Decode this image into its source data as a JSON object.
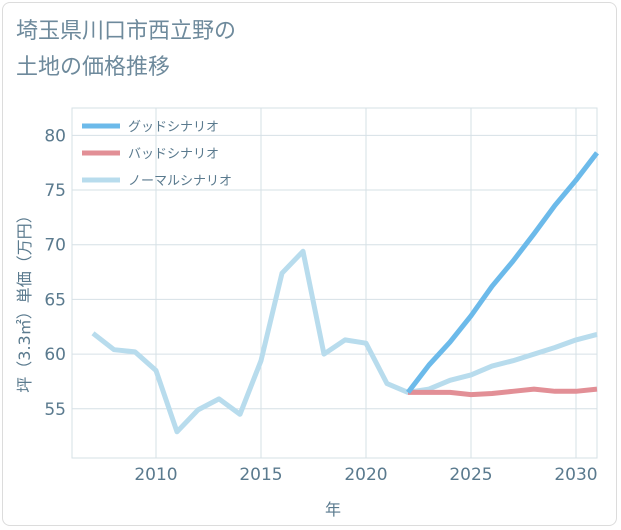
{
  "title": {
    "line1": "埼玉県川口市西立野の",
    "line2": "土地の価格推移"
  },
  "chart_data": {
    "type": "line",
    "xlabel": "年",
    "ylabel": "坪（3.3㎡）単価（万円）",
    "xlim": [
      2006,
      2031
    ],
    "ylim": [
      50.5,
      82.5
    ],
    "x_ticks": [
      2010,
      2015,
      2020,
      2025,
      2030
    ],
    "y_ticks": [
      55,
      60,
      65,
      70,
      75,
      80
    ],
    "grid": true,
    "legend_position": "top-left",
    "series": [
      {
        "name": "グッドシナリオ",
        "color": "#6cbaea",
        "x": [
          2022,
          2023,
          2024,
          2025,
          2026,
          2027,
          2028,
          2029,
          2030,
          2031
        ],
        "y": [
          56.5,
          59.0,
          61.1,
          63.5,
          66.2,
          68.5,
          71.0,
          73.6,
          75.9,
          78.4
        ]
      },
      {
        "name": "バッドシナリオ",
        "color": "#e28f96",
        "x": [
          2022,
          2023,
          2024,
          2025,
          2026,
          2027,
          2028,
          2029,
          2030,
          2031
        ],
        "y": [
          56.5,
          56.5,
          56.5,
          56.3,
          56.4,
          56.6,
          56.8,
          56.6,
          56.6,
          56.8
        ]
      },
      {
        "name": "ノーマルシナリオ",
        "color": "#b8dced",
        "x": [
          2007,
          2008,
          2009,
          2010,
          2011,
          2012,
          2013,
          2014,
          2015,
          2016,
          2017,
          2018,
          2019,
          2020,
          2021,
          2022,
          2023,
          2024,
          2025,
          2026,
          2027,
          2028,
          2029,
          2030,
          2031
        ],
        "y": [
          61.9,
          60.4,
          60.2,
          58.5,
          52.9,
          54.9,
          55.9,
          54.5,
          59.4,
          67.4,
          69.4,
          60.0,
          61.3,
          61.0,
          57.3,
          56.5,
          56.8,
          57.6,
          58.1,
          58.9,
          59.4,
          60.0,
          60.6,
          61.3,
          61.8
        ]
      }
    ]
  }
}
